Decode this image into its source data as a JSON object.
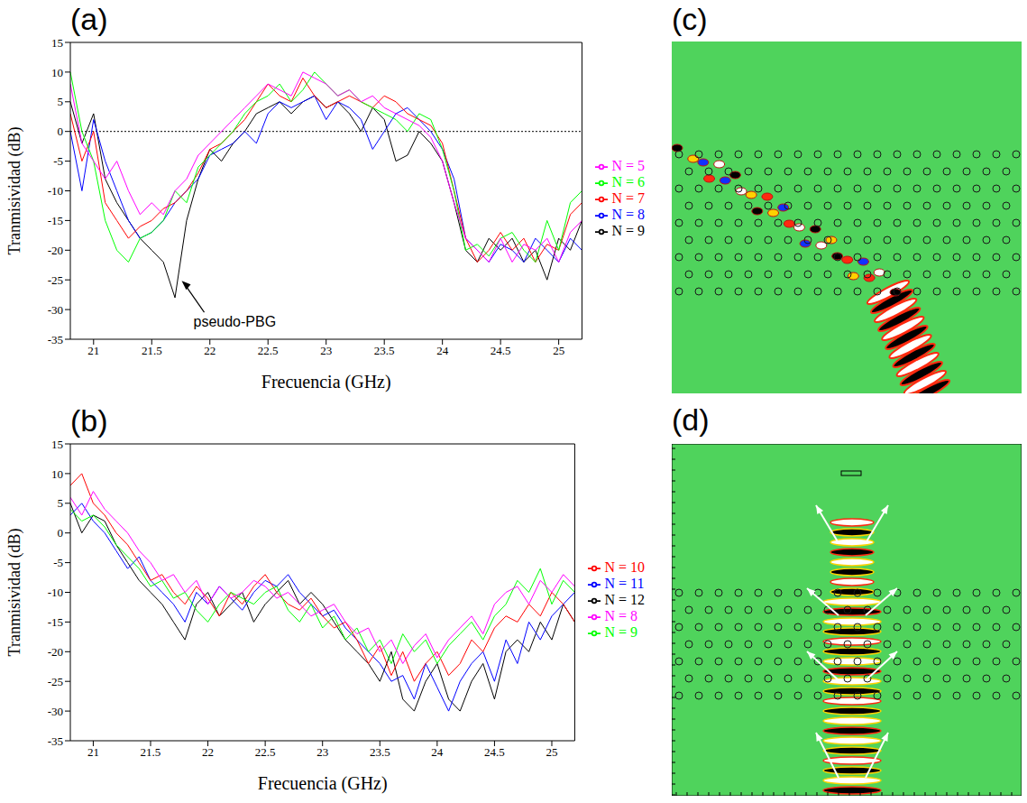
{
  "chart_data": [
    {
      "type": "line",
      "panel": "(a)",
      "xlabel": "Frecuencia (GHz)",
      "ylabel": "Tranmisividad (dB)",
      "xlim": [
        20.8,
        25.2
      ],
      "xticks": [
        21,
        21.5,
        22,
        22.5,
        23,
        23.5,
        24,
        24.5,
        25
      ],
      "ylim": [
        -35,
        15
      ],
      "yticks": [
        -35,
        -30,
        -25,
        -20,
        -15,
        -10,
        -5,
        0,
        5,
        10,
        15
      ],
      "grid": false,
      "legend": "right",
      "reference_y": 0,
      "annotations": [
        {
          "text": "pseudo-PBG",
          "x": 21.75,
          "y": -25
        }
      ],
      "x": [
        20.8,
        20.9,
        21,
        21.1,
        21.2,
        21.3,
        21.4,
        21.5,
        21.6,
        21.7,
        21.8,
        21.9,
        22,
        22.1,
        22.2,
        22.3,
        22.4,
        22.5,
        22.6,
        22.7,
        22.8,
        22.9,
        23,
        23.1,
        23.2,
        23.3,
        23.4,
        23.5,
        23.6,
        23.7,
        23.8,
        23.9,
        24,
        24.1,
        24.2,
        24.3,
        24.4,
        24.5,
        24.6,
        24.7,
        24.8,
        24.9,
        25,
        25.1,
        25.2
      ],
      "series": [
        {
          "name": "N = 9",
          "color": "#000000",
          "values": [
            5,
            -2,
            3,
            -8,
            -12,
            -15,
            -18,
            -20,
            -22,
            -28,
            -15,
            -8,
            -3,
            -5,
            -2,
            0,
            3,
            4,
            5,
            3,
            5,
            6,
            4,
            5,
            3,
            0,
            4,
            2,
            -5,
            -4,
            0,
            -2,
            -5,
            -12,
            -20,
            -22,
            -18,
            -20,
            -18,
            -22,
            -20,
            -25,
            -18,
            -20,
            -15
          ]
        },
        {
          "name": "N = 8",
          "color": "#0000ff",
          "values": [
            0,
            -10,
            2,
            -5,
            -10,
            -15,
            -18,
            -17,
            -15,
            -12,
            -10,
            -8,
            -4,
            -3,
            -2,
            0,
            -2,
            3,
            5,
            4,
            5,
            6,
            2,
            5,
            4,
            2,
            -3,
            0,
            3,
            4,
            2,
            0,
            -3,
            -8,
            -18,
            -20,
            -22,
            -19,
            -20,
            -22,
            -18,
            -20,
            -22,
            -18,
            -20
          ]
        },
        {
          "name": "N = 7",
          "color": "#ff0000",
          "values": [
            3,
            -5,
            0,
            -12,
            -15,
            -18,
            -16,
            -15,
            -13,
            -12,
            -10,
            -7,
            -3,
            -2,
            0,
            2,
            5,
            8,
            6,
            5,
            9,
            6,
            4,
            5,
            6,
            5,
            4,
            6,
            5,
            3,
            2,
            1,
            -2,
            -10,
            -18,
            -22,
            -20,
            -17,
            -20,
            -18,
            -22,
            -19,
            -20,
            -14,
            -12
          ]
        },
        {
          "name": "N = 6",
          "color": "#00ff00",
          "values": [
            10,
            0,
            -5,
            -15,
            -20,
            -22,
            -18,
            -17,
            -15,
            -10,
            -12,
            -6,
            -4,
            -2,
            0,
            3,
            5,
            6,
            8,
            5,
            7,
            10,
            8,
            6,
            7,
            5,
            4,
            3,
            2,
            0,
            3,
            2,
            -3,
            -10,
            -20,
            -19,
            -21,
            -18,
            -17,
            -20,
            -22,
            -15,
            -20,
            -12,
            -10
          ]
        },
        {
          "name": "N = 5",
          "color": "#ff00ff",
          "values": [
            8,
            -2,
            -5,
            -8,
            -5,
            -10,
            -14,
            -12,
            -14,
            -10,
            -8,
            -4,
            -2,
            0,
            2,
            4,
            6,
            8,
            7,
            6,
            10,
            9,
            8,
            6,
            7,
            5,
            6,
            4,
            3,
            2,
            1,
            -1,
            -5,
            -12,
            -18,
            -20,
            -22,
            -18,
            -22,
            -19,
            -20,
            -18,
            -22,
            -17,
            -15
          ]
        }
      ]
    },
    {
      "type": "line",
      "panel": "(b)",
      "xlabel": "Frecuencia (GHz)",
      "ylabel": "Tranmisividad (dB)",
      "xlim": [
        20.8,
        25.2
      ],
      "xticks": [
        21,
        21.5,
        22,
        22.5,
        23,
        23.5,
        24,
        24.5,
        25
      ],
      "ylim": [
        -35,
        15
      ],
      "yticks": [
        -35,
        -30,
        -25,
        -20,
        -15,
        -10,
        -5,
        0,
        5,
        10,
        15
      ],
      "grid": false,
      "legend": "right",
      "x": [
        20.8,
        20.9,
        21,
        21.1,
        21.2,
        21.3,
        21.4,
        21.5,
        21.6,
        21.7,
        21.8,
        21.9,
        22,
        22.1,
        22.2,
        22.3,
        22.4,
        22.5,
        22.6,
        22.7,
        22.8,
        22.9,
        23,
        23.1,
        23.2,
        23.3,
        23.4,
        23.5,
        23.6,
        23.7,
        23.8,
        23.9,
        24,
        24.1,
        24.2,
        24.3,
        24.4,
        24.5,
        24.6,
        24.7,
        24.8,
        24.9,
        25,
        25.1,
        25.2
      ],
      "series": [
        {
          "name": "N = 12",
          "color": "#000000",
          "values": [
            5,
            0,
            3,
            2,
            -2,
            -5,
            -8,
            -10,
            -12,
            -15,
            -18,
            -12,
            -10,
            -14,
            -12,
            -10,
            -15,
            -12,
            -10,
            -8,
            -12,
            -10,
            -12,
            -15,
            -18,
            -20,
            -22,
            -25,
            -20,
            -28,
            -30,
            -25,
            -22,
            -28,
            -30,
            -25,
            -22,
            -28,
            -20,
            -18,
            -20,
            -15,
            -18,
            -12,
            -15
          ]
        },
        {
          "name": "N = 11",
          "color": "#0000ff",
          "values": [
            3,
            5,
            2,
            0,
            -3,
            -6,
            -4,
            -8,
            -10,
            -12,
            -15,
            -10,
            -12,
            -9,
            -11,
            -13,
            -10,
            -8,
            -9,
            -7,
            -10,
            -12,
            -14,
            -13,
            -16,
            -18,
            -20,
            -22,
            -25,
            -24,
            -28,
            -22,
            -26,
            -30,
            -25,
            -22,
            -20,
            -25,
            -18,
            -22,
            -15,
            -18,
            -14,
            -12,
            -10
          ]
        },
        {
          "name": "N = 10",
          "color": "#ff0000",
          "values": [
            8,
            10,
            5,
            3,
            0,
            -2,
            -5,
            -8,
            -7,
            -10,
            -12,
            -9,
            -11,
            -14,
            -10,
            -12,
            -9,
            -7,
            -10,
            -12,
            -13,
            -11,
            -14,
            -16,
            -15,
            -18,
            -22,
            -19,
            -24,
            -20,
            -25,
            -22,
            -20,
            -24,
            -22,
            -18,
            -20,
            -16,
            -14,
            -15,
            -12,
            -14,
            -10,
            -12,
            -15
          ]
        },
        {
          "name": "N = 9",
          "color": "#00ff00",
          "values": [
            4,
            2,
            3,
            1,
            -2,
            -4,
            -6,
            -9,
            -8,
            -11,
            -10,
            -13,
            -15,
            -12,
            -10,
            -11,
            -12,
            -10,
            -9,
            -13,
            -15,
            -12,
            -16,
            -14,
            -18,
            -16,
            -20,
            -18,
            -22,
            -17,
            -20,
            -18,
            -22,
            -19,
            -17,
            -15,
            -18,
            -14,
            -12,
            -8,
            -10,
            -6,
            -12,
            -8,
            -10
          ]
        },
        {
          "name": "N = 8",
          "color": "#ff00ff",
          "values": [
            6,
            3,
            7,
            4,
            2,
            0,
            -3,
            -5,
            -8,
            -7,
            -10,
            -8,
            -12,
            -9,
            -11,
            -10,
            -8,
            -9,
            -11,
            -10,
            -12,
            -14,
            -13,
            -12,
            -15,
            -17,
            -16,
            -20,
            -18,
            -22,
            -19,
            -17,
            -21,
            -18,
            -16,
            -14,
            -17,
            -12,
            -10,
            -9,
            -12,
            -8,
            -10,
            -7,
            -9
          ]
        }
      ]
    }
  ],
  "field_maps": [
    {
      "panel": "(c)"
    },
    {
      "panel": "(d)"
    }
  ]
}
